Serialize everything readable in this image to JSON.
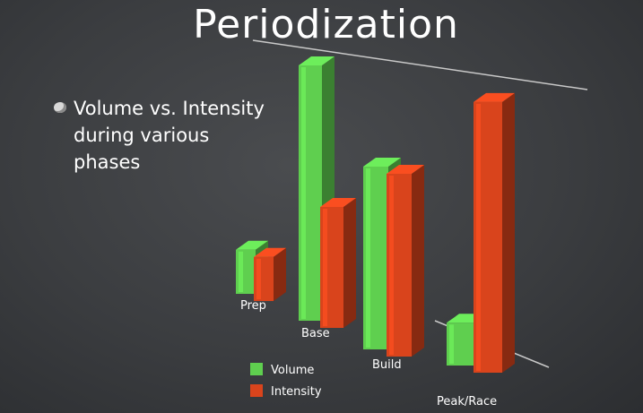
{
  "slide": {
    "title": "Periodization",
    "bullet": "Volume vs. Intensity during various phases"
  },
  "chart_data": {
    "type": "bar",
    "categories": [
      "Prep",
      "Base",
      "Build",
      "Peak/Race"
    ],
    "series": [
      {
        "name": "Volume",
        "values": [
          20,
          95,
          68,
          15
        ],
        "color": "#5fcf4f"
      },
      {
        "name": "Intensity",
        "values": [
          20,
          45,
          68,
          95
        ],
        "color": "#d9441c"
      }
    ],
    "title": "",
    "xlabel": "",
    "ylabel": "",
    "ylim": [
      0,
      100
    ],
    "grid": false,
    "legend": "bottom-left"
  }
}
